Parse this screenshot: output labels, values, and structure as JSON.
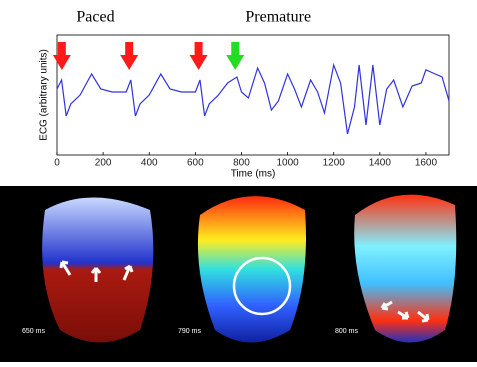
{
  "chart_data": {
    "type": "line",
    "xlabel": "Time (ms)",
    "ylabel": "ECG (arbitrary units)",
    "annotations": [
      {
        "text": "Paced"
      },
      {
        "text": "Premature"
      }
    ],
    "arrows": [
      {
        "x": 21,
        "color": "#ff1a1a"
      },
      {
        "x": 313,
        "color": "#ff1a1a"
      },
      {
        "x": 614,
        "color": "#ff1a1a"
      },
      {
        "x": 773,
        "color": "#22dd22"
      }
    ],
    "x": [
      0,
      20,
      40,
      60,
      100,
      150,
      190,
      240,
      300,
      320,
      340,
      360,
      400,
      450,
      490,
      540,
      600,
      620,
      640,
      660,
      700,
      740,
      780,
      800,
      830,
      870,
      900,
      930,
      960,
      1000,
      1030,
      1060,
      1100,
      1130,
      1160,
      1200,
      1230,
      1260,
      1290,
      1310,
      1340,
      1370,
      1400,
      1430,
      1460,
      1500,
      1540,
      1580,
      1600,
      1640,
      1670,
      1700
    ],
    "series": [
      {
        "color": "#3333dd",
        "values": [
          0.1,
          0.25,
          -0.35,
          -0.15,
          0,
          0.35,
          0.1,
          0.05,
          0.05,
          0.25,
          -0.35,
          -0.15,
          0,
          0.35,
          0.1,
          0.05,
          0.05,
          0.25,
          -0.35,
          -0.15,
          0,
          0.2,
          0.3,
          0.05,
          -0.05,
          0.45,
          0.2,
          -0.25,
          -0.1,
          0.35,
          0.1,
          -0.2,
          0.25,
          0.05,
          -0.3,
          0.5,
          0.2,
          -0.65,
          -0.2,
          0.5,
          -0.5,
          0.5,
          -0.5,
          0.1,
          0.25,
          -0.2,
          0.15,
          0.2,
          0.42,
          0.35,
          0.3,
          -0.1
        ]
      }
    ],
    "xlim": [
      0,
      1700
    ],
    "ylim": [
      -1,
      1
    ],
    "xticks": [
      0,
      200,
      400,
      600,
      800,
      1000,
      1200,
      1400,
      1600
    ]
  },
  "images": {
    "labels": [
      "650 ms",
      "790 ms",
      "800 ms"
    ]
  }
}
